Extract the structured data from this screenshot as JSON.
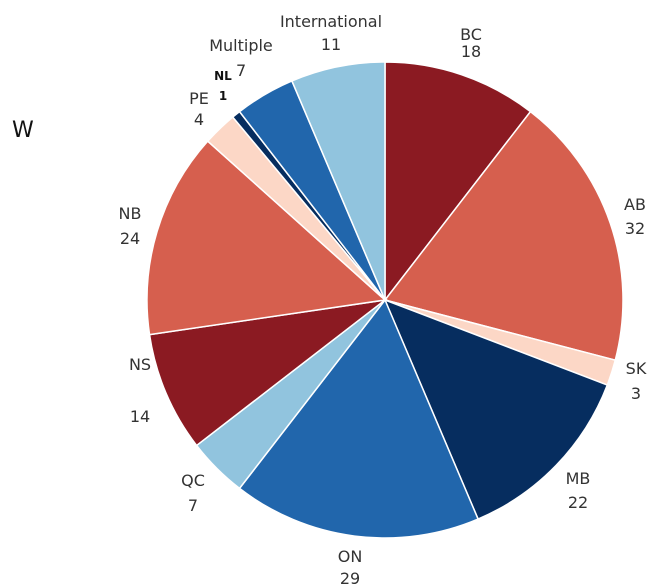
{
  "panel_letter": "W",
  "chart_data": {
    "type": "pie",
    "title": "",
    "slices": [
      {
        "label": "BC",
        "value": 18,
        "color": "#8b1a22"
      },
      {
        "label": "AB",
        "value": 32,
        "color": "#d65f4e"
      },
      {
        "label": "SK",
        "value": 3,
        "color": "#fcd7c6"
      },
      {
        "label": "MB",
        "value": 22,
        "color": "#062d5f"
      },
      {
        "label": "ON",
        "value": 29,
        "color": "#2166ac"
      },
      {
        "label": "QC",
        "value": 7,
        "color": "#91c4de"
      },
      {
        "label": "NS",
        "value": 14,
        "color": "#8b1a22"
      },
      {
        "label": "NB",
        "value": 24,
        "color": "#d65f4e"
      },
      {
        "label": "PE",
        "value": 4,
        "color": "#fcd7c6"
      },
      {
        "label": "NL",
        "value": 1,
        "color": "#062d5f"
      },
      {
        "label": "Multiple",
        "value": 7,
        "color": "#2166ac"
      },
      {
        "label": "International",
        "value": 11,
        "color": "#91c4de"
      }
    ]
  }
}
